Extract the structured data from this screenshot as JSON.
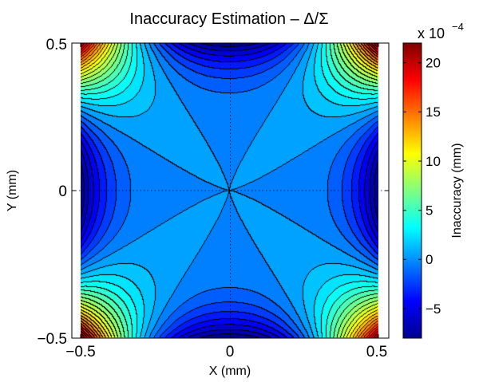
{
  "chart_data": {
    "type": "heatmap",
    "subtype": "filled-contour",
    "title": "Inaccuracy Estimation – Δ/Σ",
    "xlabel": "X (mm)",
    "ylabel": "Y (mm)",
    "xlim": [
      -0.5,
      0.5
    ],
    "ylim": [
      -0.5,
      0.5
    ],
    "x_ticks": [
      "−0.5",
      "0",
      "0.5"
    ],
    "y_ticks": [
      "0.5",
      "0",
      "−0.5"
    ],
    "colorbar": {
      "label": "Inaccuracy (mm)",
      "range": [
        -8,
        22
      ],
      "ticks": [
        "20",
        "15",
        "10",
        "5",
        "0",
        "−5"
      ],
      "scale_base": "x 10",
      "scale_exponent": "−4",
      "colormap": "jet"
    },
    "grid": "dotted lines at x=0 and y=0",
    "values_note": "field in units of 1e-4 mm: about 22 at the four corners, about -8 at the middle of the four edges, about 0 in the central plateau",
    "corner_value": 22,
    "edge_mid_value": -8,
    "center_value": 0,
    "contour_levels": 30
  }
}
